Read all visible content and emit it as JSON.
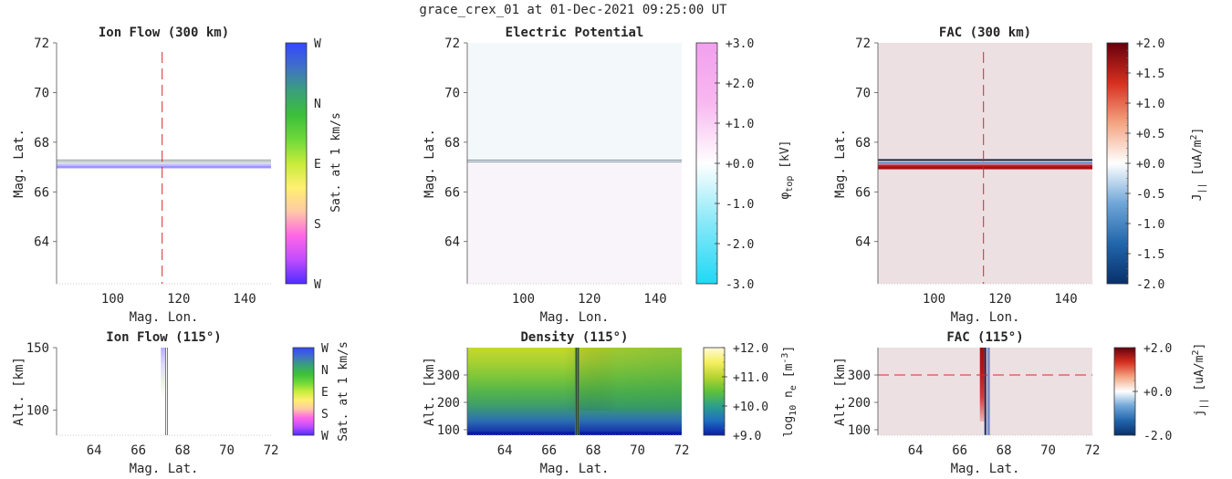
{
  "suptitle": "grace_crex_01 at 01-Dec-2021 09:25:00 UT",
  "colors": {
    "reference_line": "#d62728",
    "fac_background": "#ede0e3",
    "potential_background": "#f3f8fb",
    "orbit_track": "#6e7d8c"
  },
  "chart_data": [
    {
      "id": "ion-flow-300km",
      "type": "heatmap",
      "title": "Ion Flow (300 km)",
      "xlabel": "Mag. Lon.",
      "ylabel": "Mag. Lat.",
      "xticks": [
        100,
        120,
        140
      ],
      "yticks": [
        64,
        66,
        68,
        70,
        72
      ],
      "xlim": [
        83,
        148
      ],
      "ylim": [
        62.3,
        72
      ],
      "vertical_marker_x": 115,
      "colorbar": {
        "label": "Sat. at 1 km/s",
        "ticks": [
          "W",
          "S",
          "E",
          "N",
          "W"
        ],
        "colors": [
          "#4f2cff",
          "#c14cff",
          "#ff66e6",
          "#ffc9a6",
          "#fff070",
          "#c7ec3a",
          "#6ed83a",
          "#3cbf3a",
          "#3aa07a",
          "#4070c8",
          "#3347ff"
        ]
      }
    },
    {
      "id": "electric-potential",
      "type": "heatmap",
      "title": "Electric Potential",
      "ylabel": "Mag. Lat.",
      "xlabel": "Mag. Lon.",
      "xticks": [
        100,
        120,
        140
      ],
      "yticks": [
        64,
        66,
        68,
        70,
        72
      ],
      "xlim": [
        83,
        148
      ],
      "ylim": [
        62.3,
        72
      ],
      "colorbar": {
        "label": "φ_top [kV]",
        "ticks": [
          "-3.0",
          "-2.0",
          "-1.0",
          "+0.0",
          "+1.0",
          "+2.0",
          "+3.0"
        ],
        "vmin": -3,
        "vmax": 3,
        "colors": [
          "#20d8f5",
          "#86e8f8",
          "#ffffff",
          "#f8b8f0",
          "#f2a0ee"
        ]
      }
    },
    {
      "id": "fac-300km",
      "type": "heatmap",
      "title": "FAC (300 km)",
      "xlabel": "Mag. Lon.",
      "ylabel": "Mag. Lat.",
      "xticks": [
        100,
        120,
        140
      ],
      "yticks": [
        64,
        66,
        68,
        70,
        72
      ],
      "xlim": [
        83,
        148
      ],
      "ylim": [
        62.3,
        72
      ],
      "vertical_marker_x": 115,
      "colorbar": {
        "label": "J_|| [uA/m²]",
        "ticks": [
          "-2.0",
          "-1.5",
          "-1.0",
          "-0.5",
          "+0.0",
          "+0.5",
          "+1.0",
          "+1.5",
          "+2.0"
        ],
        "vmin": -2,
        "vmax": 2,
        "colors": [
          "#08306b",
          "#2166ac",
          "#6fa6d8",
          "#ffffff",
          "#f4a582",
          "#d6301f",
          "#67000d"
        ]
      }
    },
    {
      "id": "ion-flow-115deg",
      "type": "heatmap",
      "title": "Ion Flow (115°)",
      "xlabel": "Mag. Lat.",
      "ylabel": "Alt. [km]",
      "xticks": [
        64,
        66,
        68,
        70,
        72
      ],
      "yticks": [
        100,
        150
      ],
      "xlim": [
        62.3,
        72
      ],
      "ylim": [
        80,
        150
      ],
      "colorbar": {
        "label": "Sat. at 1 km/s",
        "ticks": [
          "W",
          "S",
          "E",
          "N",
          "W"
        ],
        "colors": [
          "#4f2cff",
          "#c14cff",
          "#ff66e6",
          "#ffc9a6",
          "#fff070",
          "#c7ec3a",
          "#6ed83a",
          "#3cbf3a",
          "#3aa07a",
          "#4070c8",
          "#3347ff"
        ]
      }
    },
    {
      "id": "density-115deg",
      "type": "heatmap",
      "title": "Density (115°)",
      "xlabel": "Mag. Lat.",
      "ylabel": "Alt. [km]",
      "xticks": [
        64,
        66,
        68,
        70,
        72
      ],
      "yticks": [
        100,
        200,
        300
      ],
      "xlim": [
        62.3,
        72
      ],
      "ylim": [
        80,
        400
      ],
      "colorbar": {
        "label": "log10 n_e [m⁻³]",
        "ticks": [
          "+9.0",
          "+10.0",
          "+11.0",
          "+12.0"
        ],
        "vmin": 9,
        "vmax": 12,
        "colors": [
          "#0b1fa8",
          "#1f6fc0",
          "#2ca08a",
          "#5ec13a",
          "#b8d430",
          "#f5f060",
          "#fff9d8"
        ]
      }
    },
    {
      "id": "fac-115deg",
      "type": "heatmap",
      "title": "FAC (115°)",
      "xlabel": "Mag. Lat.",
      "ylabel": "Alt. [km]",
      "xticks": [
        64,
        66,
        68,
        70,
        72
      ],
      "yticks": [
        100,
        200,
        300
      ],
      "xlim": [
        62.3,
        72
      ],
      "ylim": [
        80,
        400
      ],
      "horizontal_marker_y": 300,
      "colorbar": {
        "label": "j_|| [uA/m²]",
        "ticks": [
          "-2.0",
          "+0.0",
          "+2.0"
        ],
        "vmin": -2,
        "vmax": 2,
        "colors": [
          "#08306b",
          "#2166ac",
          "#6fa6d8",
          "#ffffff",
          "#f4a582",
          "#d6301f",
          "#67000d"
        ]
      }
    }
  ]
}
